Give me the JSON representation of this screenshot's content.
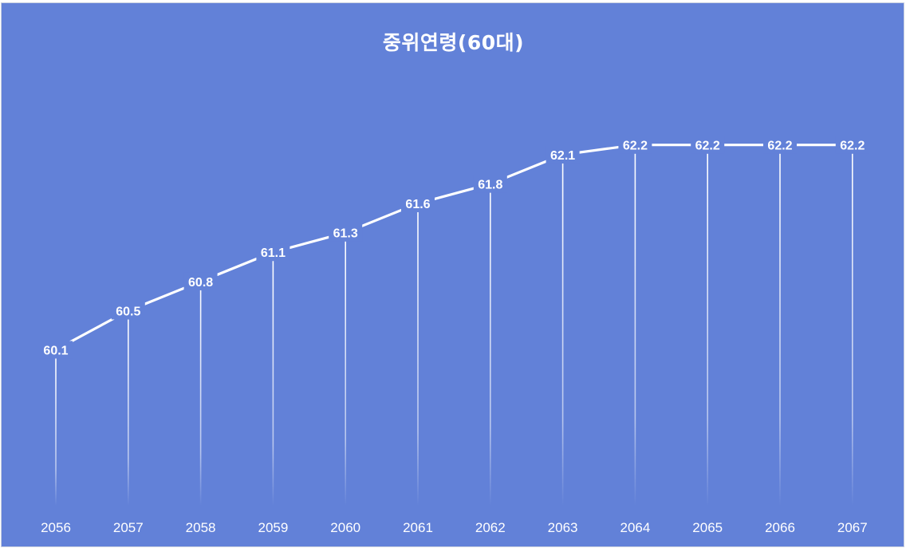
{
  "chart_data": {
    "type": "line",
    "title": "중위연령(60대)",
    "xlabel": "",
    "ylabel": "",
    "categories": [
      "2056",
      "2057",
      "2058",
      "2059",
      "2060",
      "2061",
      "2062",
      "2063",
      "2064",
      "2065",
      "2066",
      "2067"
    ],
    "series": [
      {
        "values": [
          60.1,
          60.5,
          60.8,
          61.1,
          61.3,
          61.6,
          61.8,
          62.1,
          62.2,
          62.2,
          62.2,
          62.2
        ],
        "labels": [
          "60.1",
          "60.5",
          "60.8",
          "61.1",
          "61.3",
          "61.6",
          "61.8",
          "62.1",
          "62.2",
          "62.2",
          "62.2",
          "62.2"
        ]
      }
    ],
    "ylim": [
      58.5,
      62.5
    ],
    "grid": false,
    "legend": "none",
    "drop_lines": true
  },
  "colors": {
    "background": "#6281d8",
    "line": "#ffffff",
    "text": "#ffffff"
  }
}
